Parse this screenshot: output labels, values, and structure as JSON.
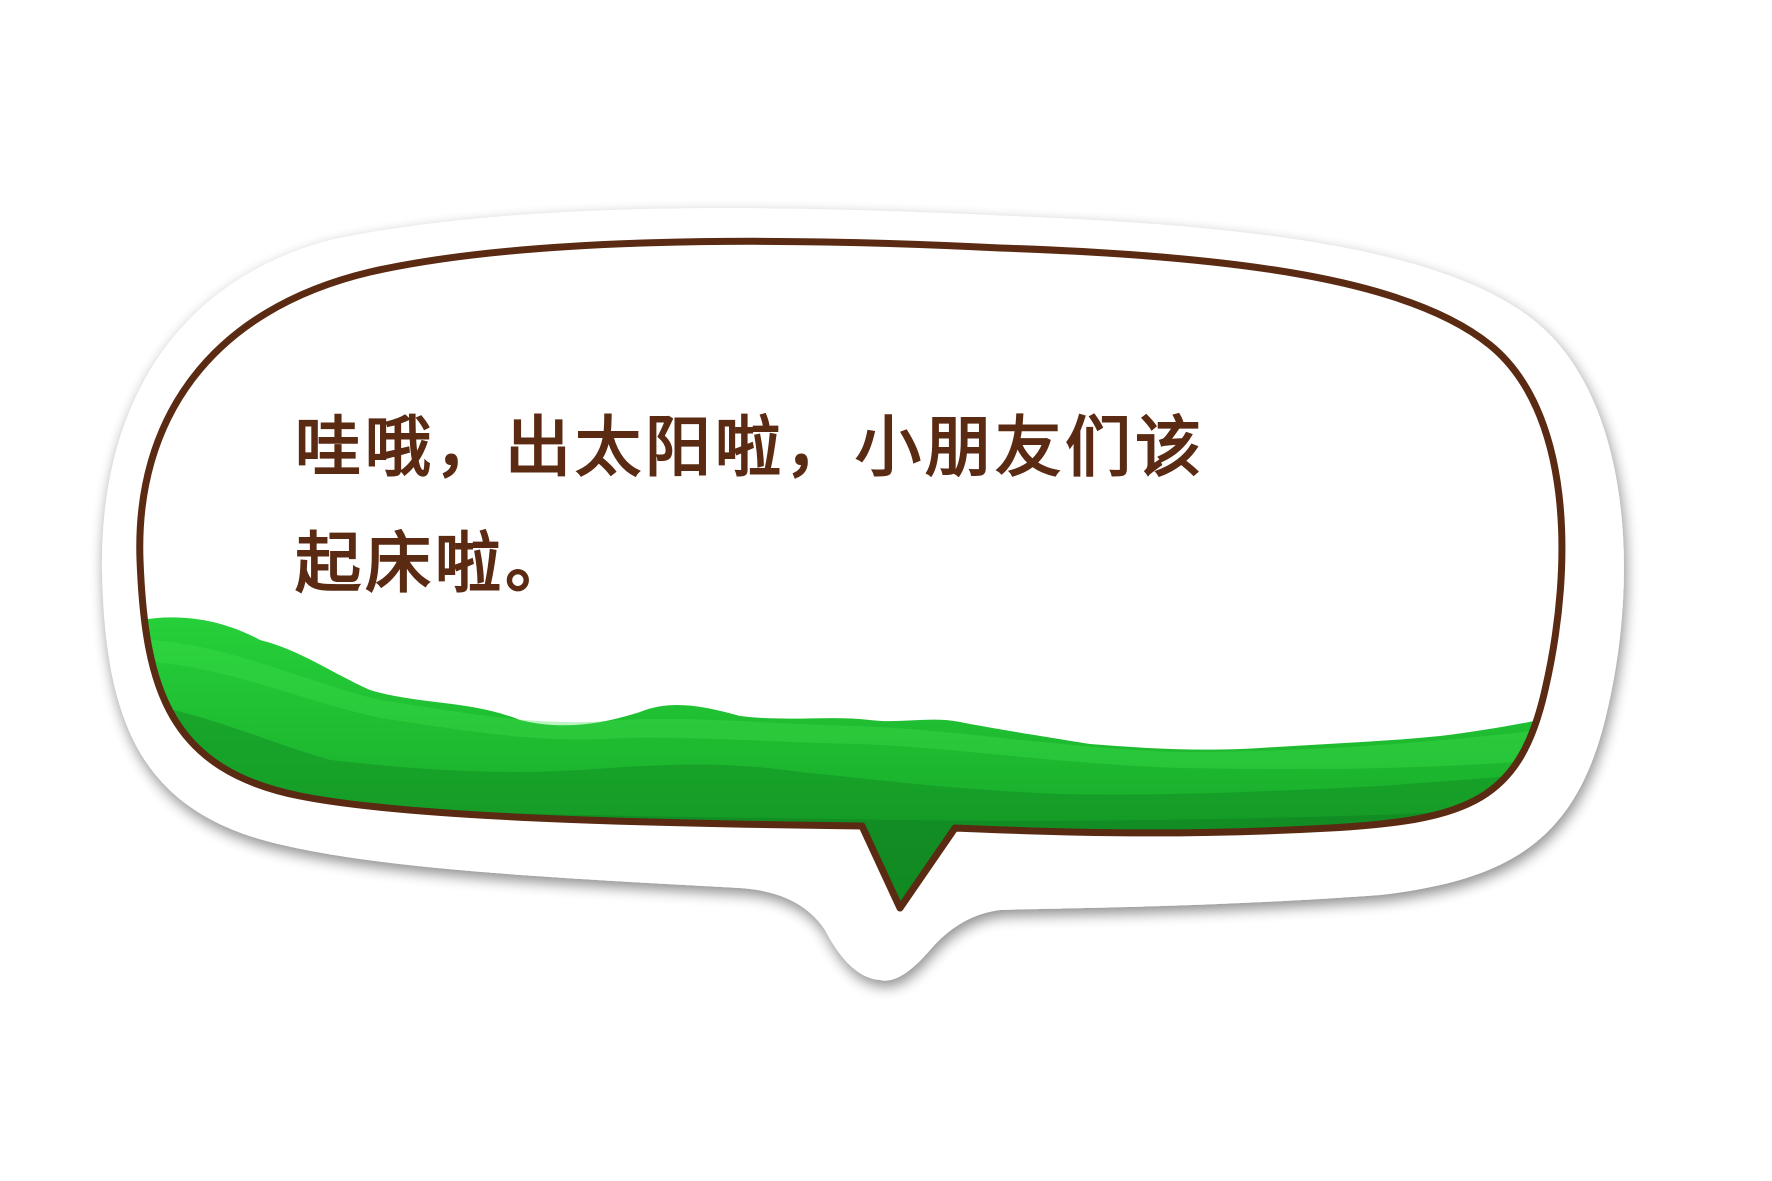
{
  "bubble": {
    "lines": [
      "哇哦，出太阳啦，小朋友们该",
      "起床啦。"
    ]
  },
  "colors": {
    "outline": "#5a2a12",
    "text": "#5a2a12",
    "grass_light": "#22cc33",
    "grass_mid": "#1aa82a",
    "grass_dark": "#128a22",
    "sticker_edge": "#ffffff"
  }
}
